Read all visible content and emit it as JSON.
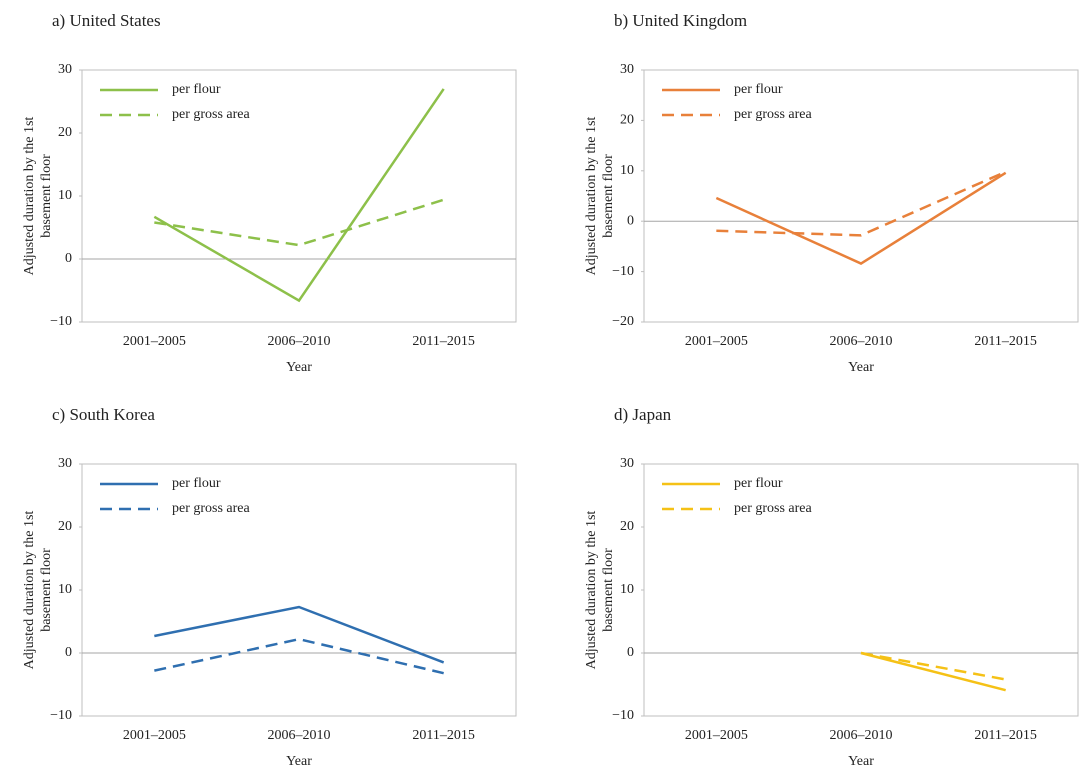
{
  "chart_data": [
    {
      "type": "line",
      "title": "a) United States",
      "categories": [
        "2001–2005",
        "2006–2010",
        "2011–2015"
      ],
      "xlabel": "Year",
      "ylabel": [
        "Adjusted duration by the 1st",
        "basement floor"
      ],
      "ylim": [
        -10,
        30
      ],
      "yticks": [
        {
          "value": -10,
          "label": "−10"
        },
        0,
        10,
        20,
        30
      ],
      "grid": false,
      "legend": "upper left",
      "series": [
        {
          "name": "per flour",
          "color": "#8dc04a",
          "line_style": "solid",
          "values": [
            6.7,
            -6.6,
            27
          ]
        },
        {
          "name": "per gross area",
          "color": "#8dc04a",
          "line_style": "dashed",
          "values": [
            5.8,
            2.2,
            9.4
          ]
        }
      ]
    },
    {
      "type": "line",
      "title": "b) United Kingdom",
      "categories": [
        "2001–2005",
        "2006–2010",
        "2011–2015"
      ],
      "xlabel": "Year",
      "ylabel": [
        "Adjusted duration by the 1st",
        "basement floor"
      ],
      "ylim": [
        -20,
        30
      ],
      "yticks": [
        {
          "value": -20,
          "label": "−20"
        },
        {
          "value": -10,
          "label": "−10"
        },
        0,
        10,
        20,
        30
      ],
      "grid": false,
      "legend": "upper left",
      "series": [
        {
          "name": "per flour",
          "color": "#e8803a",
          "line_style": "solid",
          "values": [
            4.6,
            -8.4,
            9.6
          ]
        },
        {
          "name": "per gross area",
          "color": "#e8803a",
          "line_style": "dashed",
          "values": [
            -1.9,
            -2.8,
            9.8
          ]
        }
      ]
    },
    {
      "type": "line",
      "title": "c) South Korea",
      "categories": [
        "2001–2005",
        "2006–2010",
        "2011–2015"
      ],
      "xlabel": "Year",
      "ylabel": [
        "Adjusted duration by the 1st",
        "basement floor"
      ],
      "ylim": [
        -10,
        30
      ],
      "yticks": [
        {
          "value": -10,
          "label": "−10"
        },
        0,
        10,
        20,
        30
      ],
      "grid": false,
      "legend": "upper left",
      "series": [
        {
          "name": "per flour",
          "color": "#2f6fb0",
          "line_style": "solid",
          "values": [
            2.7,
            7.3,
            -1.5
          ]
        },
        {
          "name": "per gross area",
          "color": "#2f6fb0",
          "line_style": "dashed",
          "values": [
            -2.8,
            2.2,
            -3.2
          ]
        }
      ]
    },
    {
      "type": "line",
      "title": "d) Japan",
      "categories": [
        "2001–2005",
        "2006–2010",
        "2011–2015"
      ],
      "xlabel": "Year",
      "ylabel": [
        "Adjusted duration by the 1st",
        "basement floor"
      ],
      "ylim": [
        -10,
        30
      ],
      "yticks": [
        {
          "value": -10,
          "label": "−10"
        },
        0,
        10,
        20,
        30
      ],
      "grid": false,
      "legend": "upper left",
      "series": [
        {
          "name": "per flour",
          "color": "#f5c116",
          "line_style": "solid",
          "values": [
            null,
            0,
            -5.9
          ]
        },
        {
          "name": "per gross area",
          "color": "#f5c116",
          "line_style": "dashed",
          "values": [
            null,
            0,
            -4.2
          ]
        }
      ]
    }
  ]
}
